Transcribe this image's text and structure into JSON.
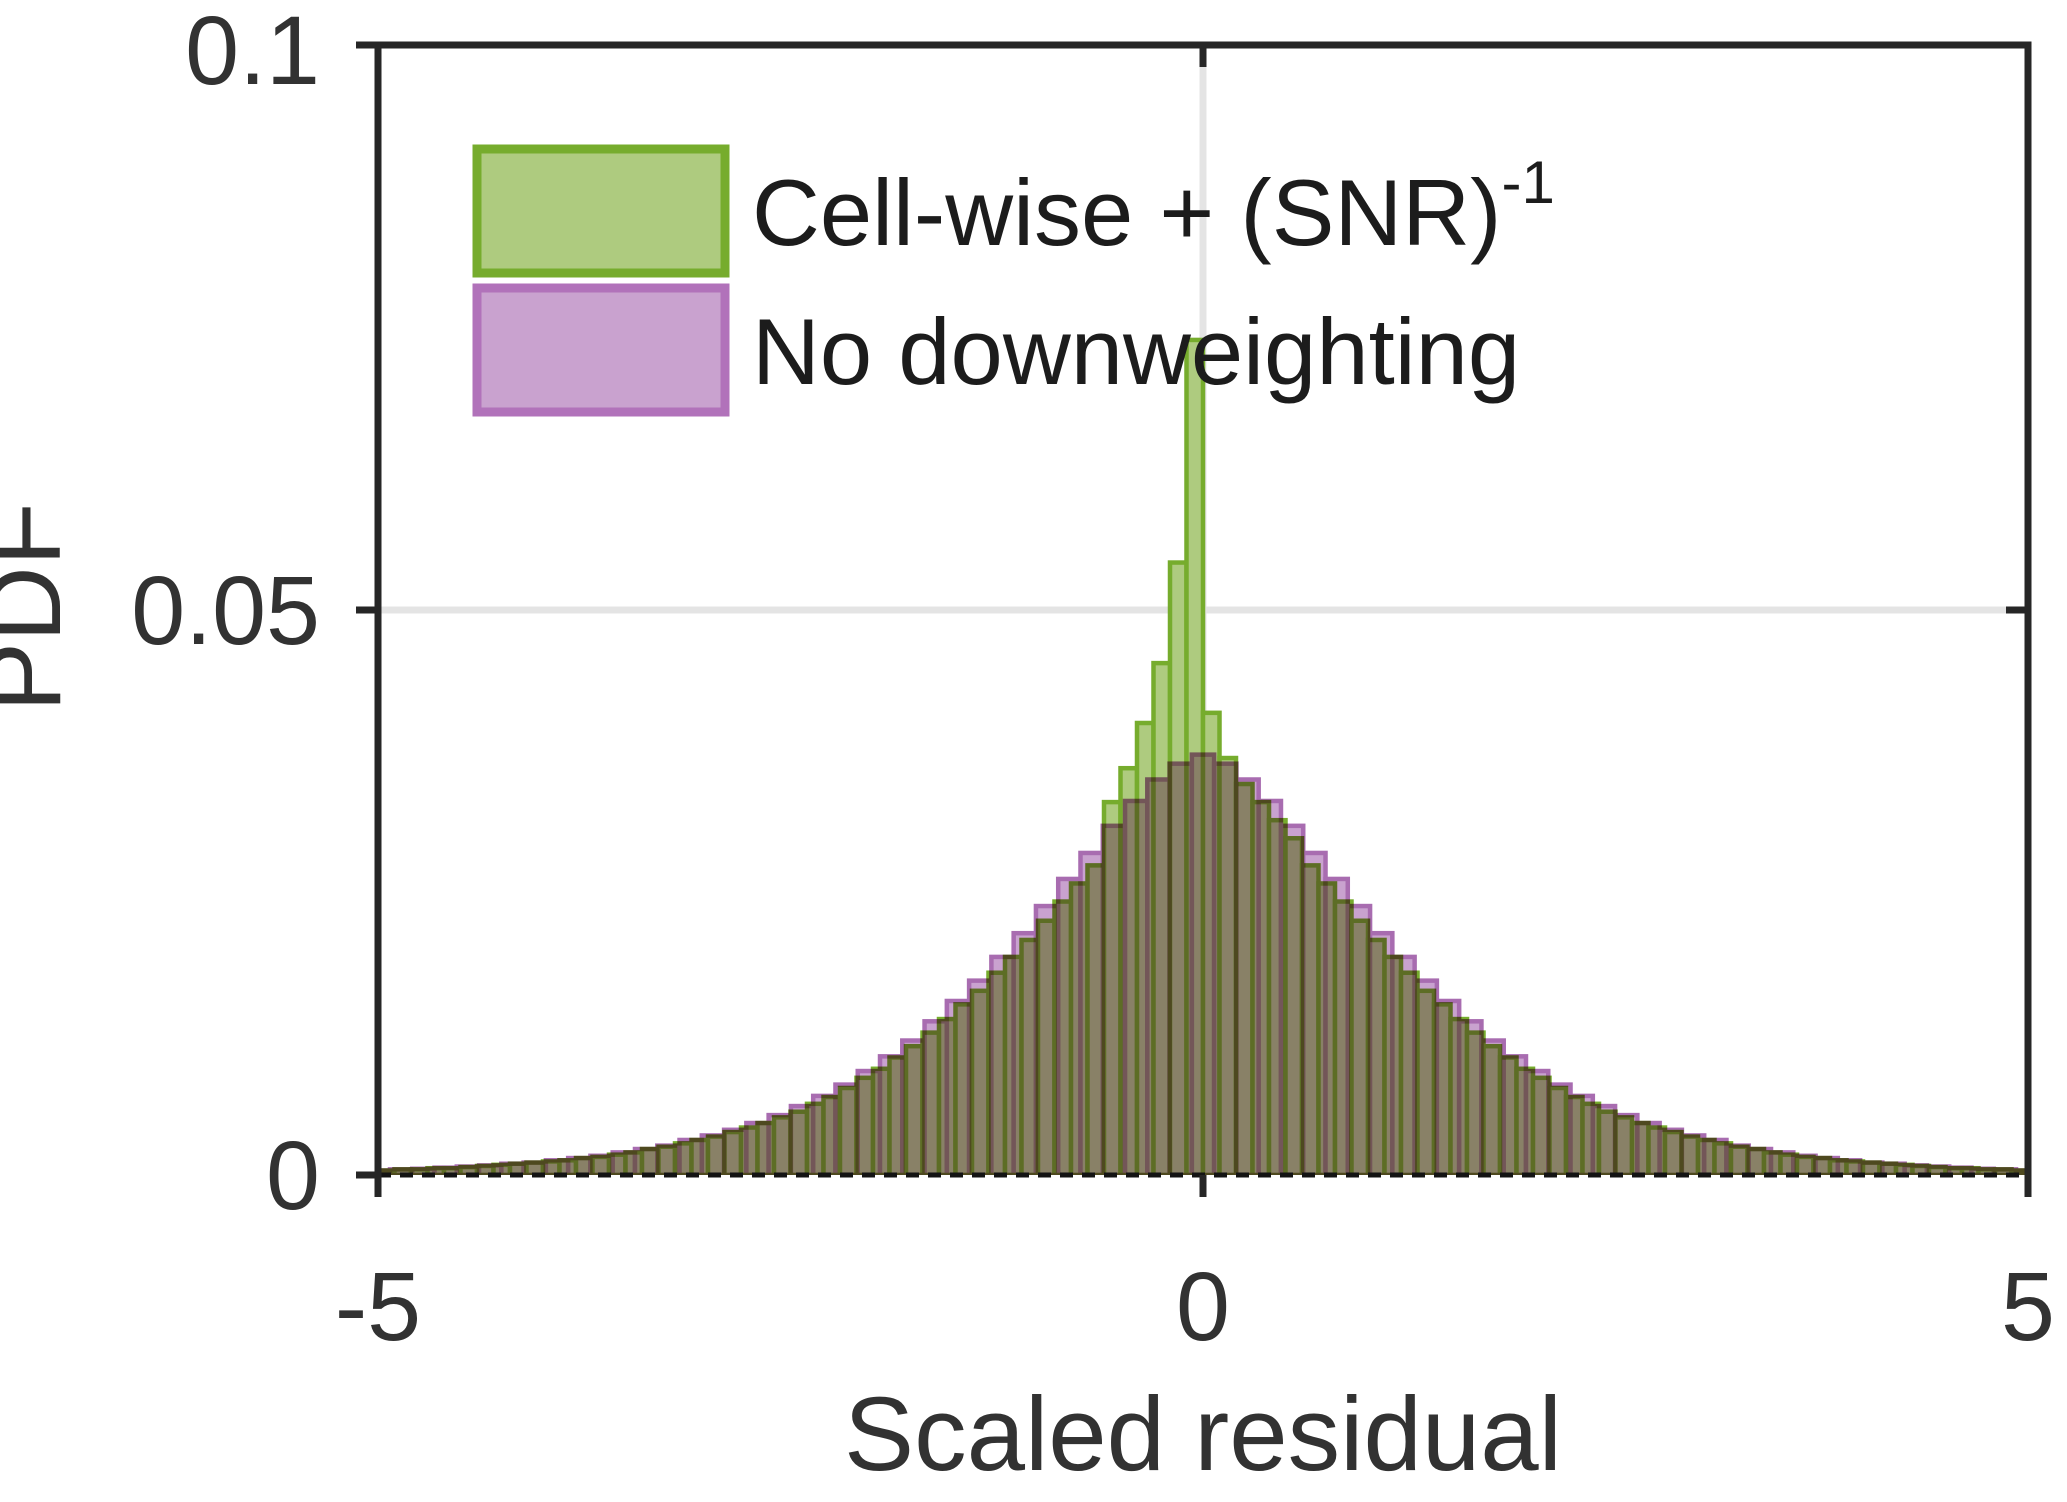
{
  "figure": {
    "background": "#ffffff"
  },
  "axis": {
    "x": {
      "label": "Scaled residual",
      "min": -5,
      "max": 5,
      "ticks": [
        {
          "value": -5,
          "label": "-5"
        },
        {
          "value": 0,
          "label": "0"
        },
        {
          "value": 5,
          "label": "5"
        }
      ]
    },
    "y": {
      "label": "PDF",
      "min": 0,
      "max": 0.1,
      "ticks": [
        {
          "value": 0,
          "label": "0"
        },
        {
          "value": 0.05,
          "label": "0.05"
        },
        {
          "value": 0.1,
          "label": "0.1"
        }
      ]
    }
  },
  "legend": {
    "items": [
      {
        "label": "Cell-wise + (SNR)",
        "superscript": "-1",
        "fill": "#aecb7f",
        "edge": "#76ac2d"
      },
      {
        "label": "No downweighting",
        "superscript": "",
        "fill": "#c9a2cf",
        "edge": "#b172ba"
      }
    ]
  },
  "chart_data": {
    "type": "bar",
    "subtype": "overlaid-histograms",
    "title": "",
    "xlabel": "Scaled residual",
    "ylabel": "PDF",
    "xlim": [
      -5,
      5
    ],
    "ylim": [
      0,
      0.1
    ],
    "grid": {
      "x_gridlines_at": [
        0
      ],
      "y_gridlines_at": [
        0.05
      ]
    },
    "legend_position": "upper-left-inside",
    "zero_line": {
      "y": 0,
      "style": "dashed",
      "color": "#141414"
    },
    "series": [
      {
        "name": "Cell-wise + (SNR)^-1",
        "fill": "#aecb7f",
        "edge": "#76ac2d",
        "bin_width": 0.1,
        "first_bin_center": -4.95,
        "values": [
          0.0004,
          0.0005,
          0.0005,
          0.0006,
          0.0006,
          0.0007,
          0.0008,
          0.0009,
          0.001,
          0.0011,
          0.0012,
          0.0013,
          0.0015,
          0.0016,
          0.0018,
          0.002,
          0.0023,
          0.0025,
          0.0028,
          0.0031,
          0.0034,
          0.0038,
          0.0042,
          0.0046,
          0.0051,
          0.0056,
          0.0063,
          0.0069,
          0.0077,
          0.0086,
          0.0094,
          0.0104,
          0.0114,
          0.0126,
          0.0138,
          0.0151,
          0.0163,
          0.0179,
          0.0193,
          0.0208,
          0.0225,
          0.0242,
          0.0258,
          0.0274,
          0.033,
          0.036,
          0.04,
          0.0453,
          0.0542,
          0.0739,
          0.0409,
          0.0369,
          0.0346,
          0.033,
          0.0314,
          0.0298,
          0.0274,
          0.0258,
          0.0242,
          0.0225,
          0.0208,
          0.0193,
          0.0179,
          0.0163,
          0.0151,
          0.0138,
          0.0126,
          0.0114,
          0.0104,
          0.0094,
          0.0086,
          0.0077,
          0.0069,
          0.0063,
          0.0056,
          0.0051,
          0.0046,
          0.0042,
          0.0038,
          0.0034,
          0.0031,
          0.0028,
          0.0025,
          0.0023,
          0.002,
          0.0018,
          0.0016,
          0.0015,
          0.0013,
          0.0012,
          0.0011,
          0.001,
          0.0009,
          0.0008,
          0.0007,
          0.0006,
          0.0006,
          0.0005,
          0.0005,
          0.0004
        ]
      },
      {
        "name": "No downweighting",
        "fill": "#c9a2cf",
        "edge": "#a86cb0",
        "bin_width": 0.135,
        "first_bin_center": -4.995,
        "values": [
          0.0004,
          0.0005,
          0.00055,
          0.00065,
          0.00075,
          0.00085,
          0.001,
          0.0011,
          0.0013,
          0.0015,
          0.0017,
          0.002,
          0.0023,
          0.0026,
          0.0031,
          0.0035,
          0.004,
          0.0046,
          0.0053,
          0.0061,
          0.007,
          0.008,
          0.0092,
          0.0105,
          0.0119,
          0.0136,
          0.0154,
          0.0172,
          0.0193,
          0.0214,
          0.0238,
          0.0262,
          0.0285,
          0.0309,
          0.0331,
          0.035,
          0.0364,
          0.0372,
          0.0364,
          0.035,
          0.0331,
          0.0309,
          0.0285,
          0.0262,
          0.0238,
          0.0214,
          0.0193,
          0.0172,
          0.0154,
          0.0136,
          0.0119,
          0.0105,
          0.0092,
          0.008,
          0.007,
          0.0061,
          0.0053,
          0.0046,
          0.004,
          0.0035,
          0.0031,
          0.0026,
          0.0023,
          0.002,
          0.0017,
          0.0015,
          0.0013,
          0.0011,
          0.001,
          0.00085,
          0.00075,
          0.00065,
          0.00055,
          0.0005,
          0.0004
        ]
      }
    ]
  }
}
